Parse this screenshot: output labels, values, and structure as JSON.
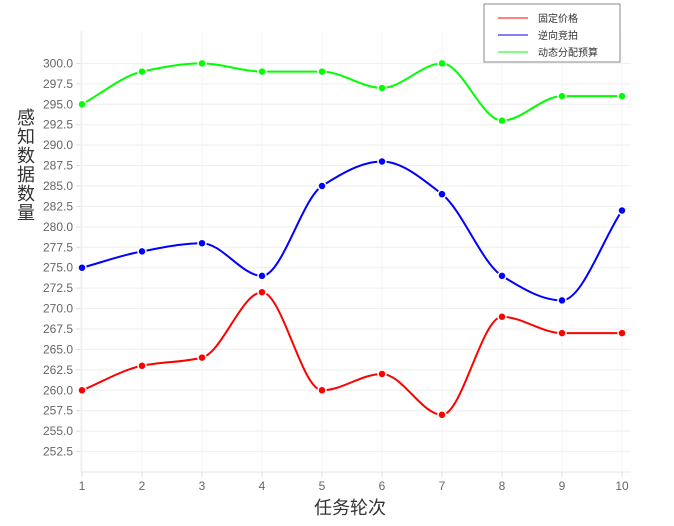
{
  "chart_data": {
    "type": "line",
    "title": "",
    "xlabel": "任务轮次",
    "ylabel": "感知数据数量",
    "x": [
      1,
      2,
      3,
      4,
      5,
      6,
      7,
      8,
      9,
      10
    ],
    "x_ticks": [
      "1",
      "2",
      "3",
      "4",
      "5",
      "6",
      "7",
      "8",
      "9",
      "10"
    ],
    "y_ticks": [
      "252.5",
      "255.0",
      "257.5",
      "260.0",
      "262.5",
      "265.0",
      "267.5",
      "270.0",
      "272.5",
      "275.0",
      "277.5",
      "280.0",
      "282.5",
      "285.0",
      "287.5",
      "290.0",
      "292.5",
      "295.0",
      "297.5",
      "300.0"
    ],
    "ylim": [
      250.0,
      302.5
    ],
    "grid": true,
    "smooth": true,
    "legend_position": "top-right",
    "series": [
      {
        "name": "固定价格",
        "color": "#ff0000",
        "values": [
          260,
          263,
          264,
          272,
          260,
          262,
          257,
          269,
          267,
          267
        ]
      },
      {
        "name": "逆向竞拍",
        "color": "#0000ff",
        "values": [
          275,
          277,
          278,
          274,
          285,
          288,
          284,
          274,
          271,
          282
        ]
      },
      {
        "name": "动态分配预算",
        "color": "#00ff00",
        "values": [
          295,
          299,
          300,
          299,
          299,
          297,
          300,
          293,
          296,
          296
        ]
      }
    ]
  }
}
